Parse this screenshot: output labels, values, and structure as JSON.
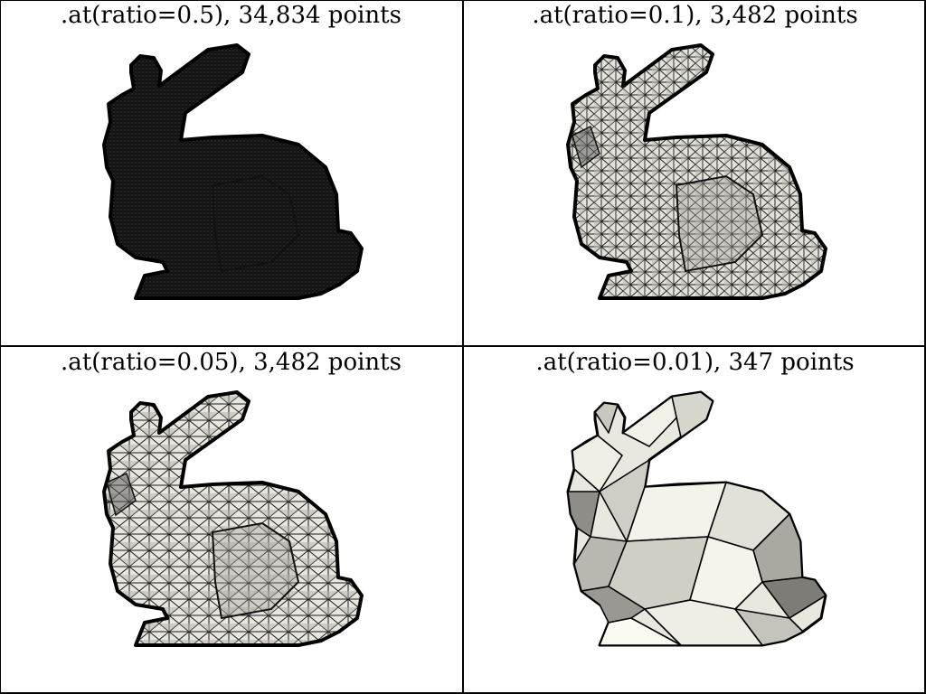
{
  "panels": [
    {
      "title": ".at(ratio=0.5), 34,834 points",
      "mesh_density": "very-dense",
      "fill": "#1c1c1c"
    },
    {
      "title": ".at(ratio=0.1), 3,482 points",
      "mesh_density": "dense",
      "fill": "#d9d8d0"
    },
    {
      "title": ".at(ratio=0.05), 3,482 points",
      "mesh_density": "medium",
      "fill": "#d9d8d0"
    },
    {
      "title": ".at(ratio=0.01), 347 points",
      "mesh_density": "coarse",
      "fill": "#e3e2d8"
    }
  ],
  "colors": {
    "background": "#ffffff",
    "grid_line": "#000000",
    "edge": "#000000"
  }
}
